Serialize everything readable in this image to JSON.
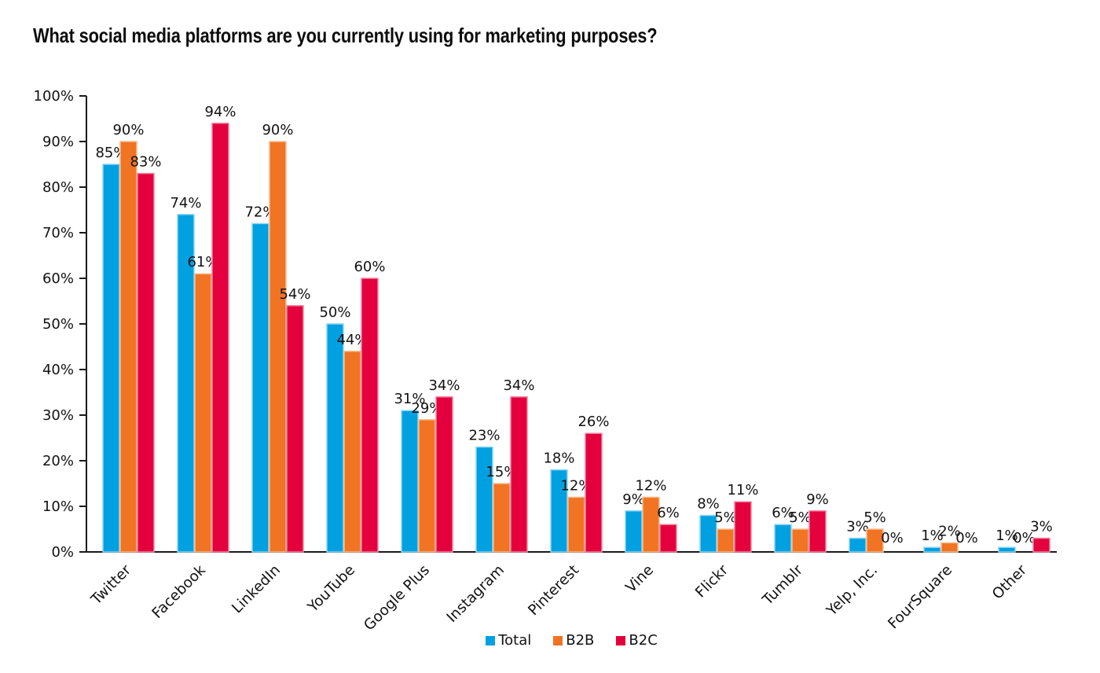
{
  "chart_data": {
    "type": "bar",
    "title": "What social media platforms are you currently using for marketing purposes?",
    "categories": [
      "Twitter",
      "Facebook",
      "LinkedIn",
      "YouTube",
      "Google Plus",
      "Instagram",
      "Pinterest",
      "Vine",
      "Flickr",
      "Tumblr",
      "Yelp, Inc.",
      "FourSquare",
      "Other"
    ],
    "series": [
      {
        "name": "Total",
        "color": "#00A0E1",
        "edge_color": "#8ED5F2",
        "values": [
          85,
          74,
          72,
          50,
          31,
          23,
          18,
          9,
          8,
          6,
          3,
          1,
          1
        ]
      },
      {
        "name": "B2B",
        "color": "#F07423",
        "edge_color": "#F8BE93",
        "values": [
          90,
          61,
          90,
          44,
          29,
          15,
          12,
          12,
          5,
          5,
          5,
          2,
          0
        ]
      },
      {
        "name": "B2C",
        "color": "#E4003C",
        "edge_color": "#F285A3",
        "values": [
          83,
          94,
          54,
          60,
          34,
          34,
          26,
          6,
          11,
          9,
          0,
          0,
          3
        ]
      }
    ],
    "xlabel": "",
    "ylabel": "",
    "ylim": [
      0,
      100
    ],
    "ytick_step": 10,
    "ytick_labels": [
      "0%",
      "10%",
      "20%",
      "30%",
      "40%",
      "50%",
      "60%",
      "70%",
      "80%",
      "90%",
      "100%"
    ],
    "value_label_format": "{v}%",
    "grid": false,
    "legend_position": "bottom",
    "background_color": "#ffffff",
    "axis_color": "#1a1a1a",
    "text_color": "#121212"
  }
}
